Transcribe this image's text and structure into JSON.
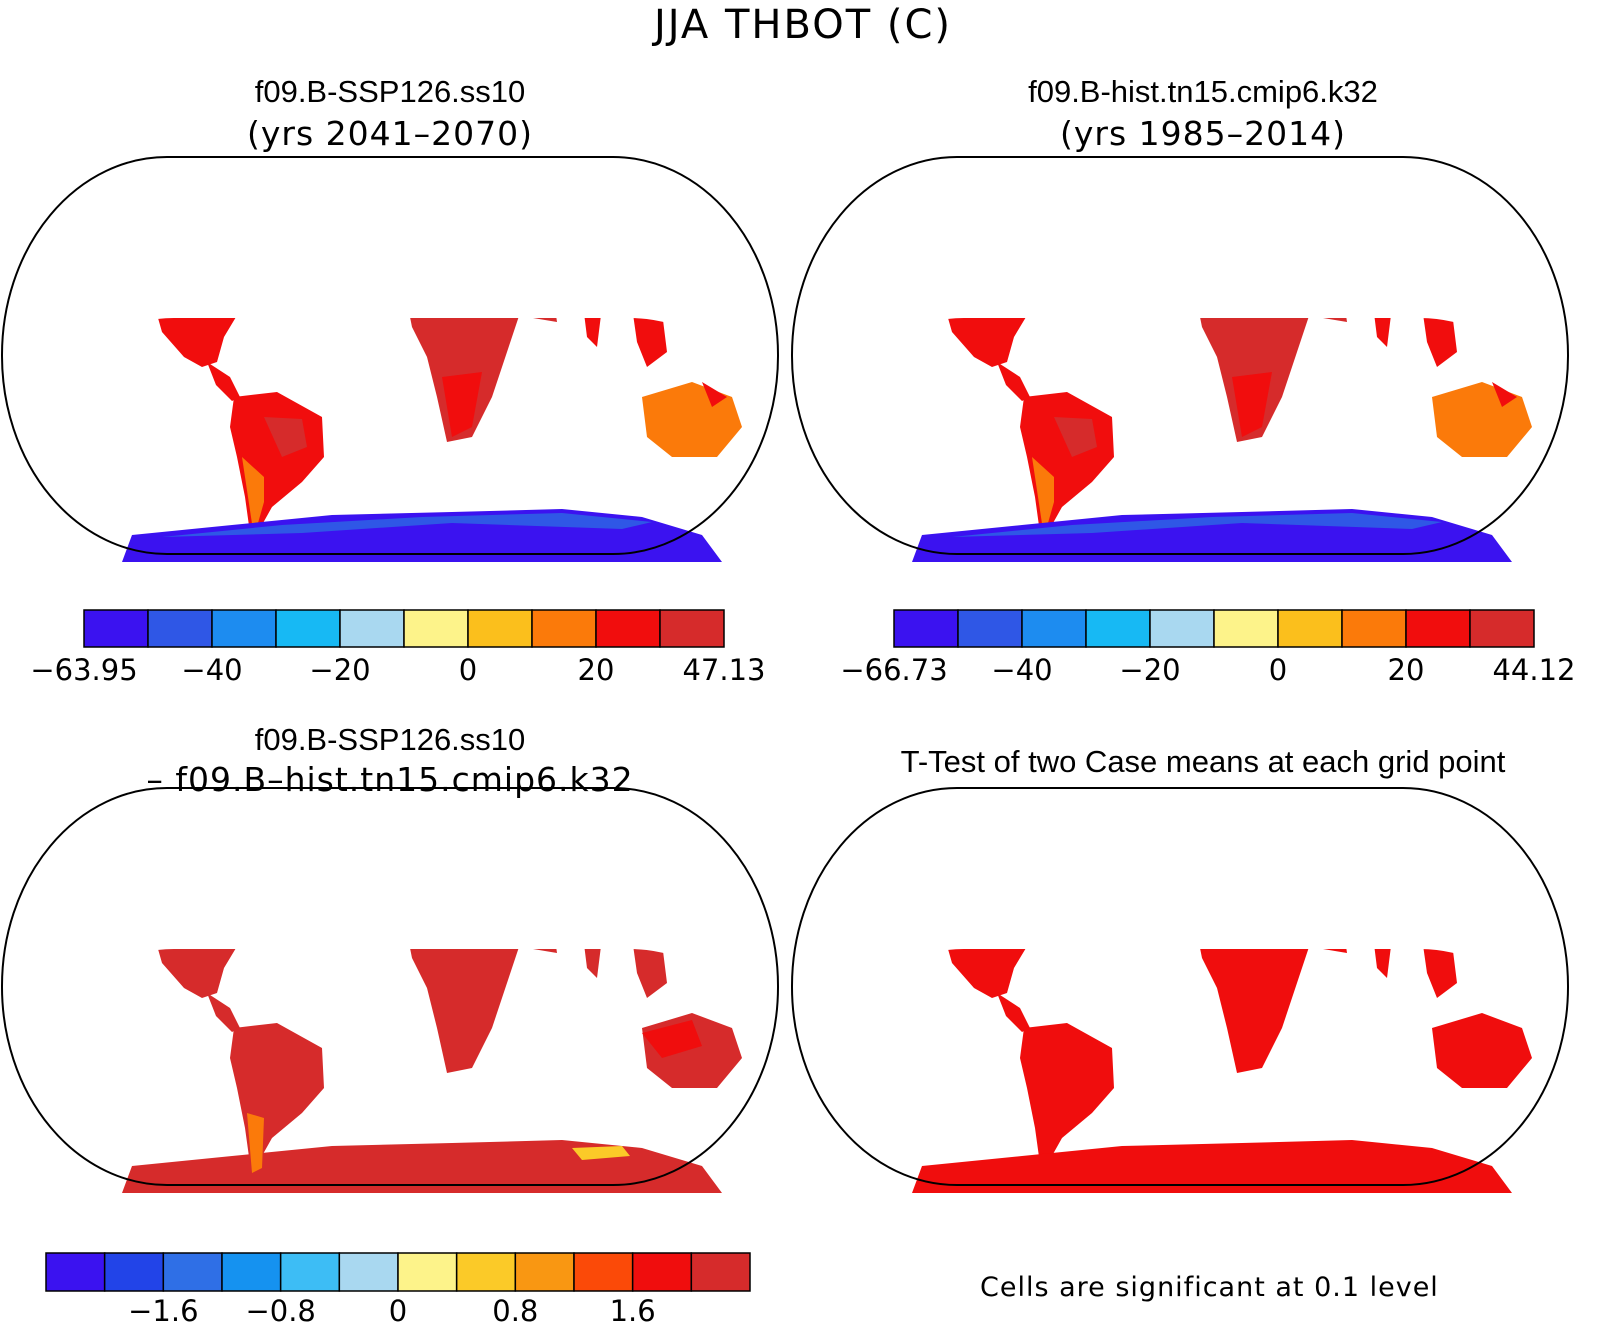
{
  "title": "JJA THBOT (C)",
  "panels": [
    {
      "case": "f09.B-SSP126.ss10",
      "years": "(yrs 2041–2070)"
    },
    {
      "case": "f09.B-hist.tn15.cmip6.k32",
      "years": "(yrs 1985–2014)"
    },
    {
      "case": "f09.B-SSP126.ss10",
      "years": "– f09.B–hist.tn15.cmip6.k32"
    },
    {
      "case": "T-Test of two Case means at each grid point",
      "years": ""
    }
  ],
  "colorbars": [
    {
      "colors": [
        "#3b12f0",
        "#2f57e6",
        "#1d8cf0",
        "#17b9f4",
        "#a9d8f0",
        "#fdf38a",
        "#fbbf1c",
        "#fb7a0a",
        "#f10d0d",
        "#d62b2b"
      ],
      "ticks": [
        "−63.95",
        "−40",
        "−20",
        "0",
        "20",
        "47.13"
      ]
    },
    {
      "colors": [
        "#3b12f0",
        "#2f57e6",
        "#1d8cf0",
        "#17b9f4",
        "#a9d8f0",
        "#fdf38a",
        "#fbbf1c",
        "#fb7a0a",
        "#f10d0d",
        "#d62b2b"
      ],
      "ticks": [
        "−66.73",
        "−40",
        "−20",
        "0",
        "20",
        "44.12"
      ]
    },
    {
      "colors": [
        "#3b12f0",
        "#2244e8",
        "#2f6fe6",
        "#1592f0",
        "#3dbdf5",
        "#a9d8f0",
        "#fdf38a",
        "#fbca28",
        "#f99712",
        "#fb4a08",
        "#f00d0d",
        "#d62b2b"
      ],
      "ticks": [
        "−1.6",
        "−0.8",
        "0",
        "0.8",
        "1.6"
      ]
    }
  ],
  "significance_note": "Cells are significant at 0.1 level",
  "colors": {
    "tropics": "#d62b2b",
    "warm": "#f10d0d",
    "mild": "#fb7a0a",
    "cool": "#fbbf1c",
    "cold_ice": "#3b12f0",
    "ttest_fill": "#f00d0d"
  }
}
